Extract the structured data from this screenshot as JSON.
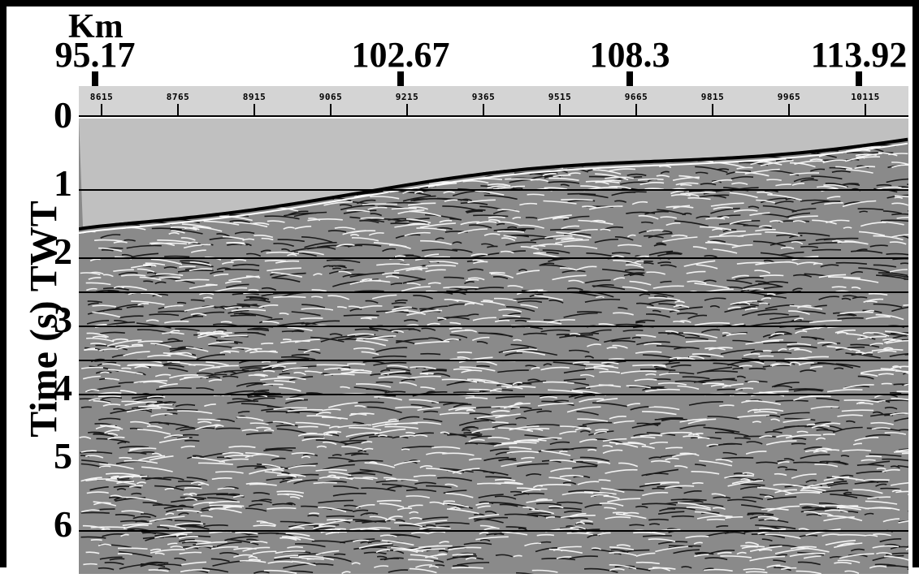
{
  "figure": {
    "distance_unit": "Km",
    "distance_ticks": [
      {
        "value": "95.17",
        "cdp": 8615
      },
      {
        "value": "102.67",
        "cdp": 9215
      },
      {
        "value": "108.3",
        "cdp": 9665
      },
      {
        "value": "113.92",
        "cdp": 10115
      }
    ],
    "cdp_labels": [
      "8615",
      "8765",
      "8915",
      "9065",
      "9215",
      "9365",
      "9515",
      "9665",
      "9815",
      "9965",
      "10115"
    ],
    "time_axis_title": "Time (s) TWT",
    "time_labels": [
      "0",
      "1",
      "2",
      "3",
      "4",
      "5",
      "6"
    ],
    "time_range_s": [
      0,
      6.6
    ],
    "horizontal_lines_s": [
      1,
      2,
      2.5,
      3,
      3.5,
      4,
      6
    ],
    "colors": {
      "water": "#c0c0c0",
      "background": "#ffffff",
      "frame": "#000000",
      "bar": "#d4d4d4"
    }
  }
}
